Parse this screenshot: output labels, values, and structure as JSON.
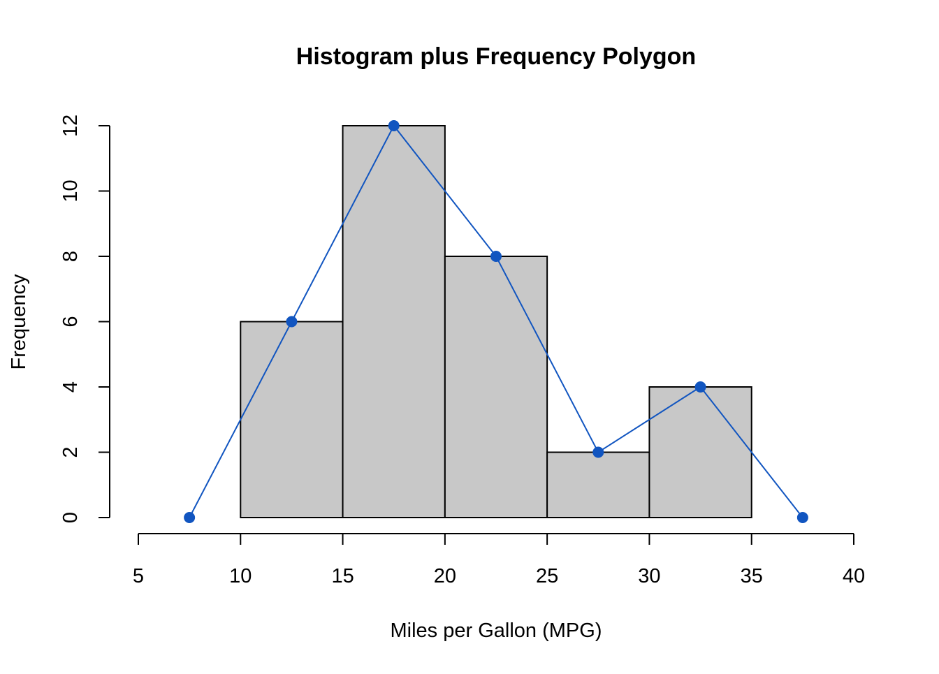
{
  "chart_data": {
    "type": "bar",
    "title": "Histogram plus Frequency Polygon",
    "xlabel": "Miles per Gallon (MPG)",
    "ylabel": "Frequency",
    "xlim": [
      5,
      40
    ],
    "ylim": [
      0,
      12
    ],
    "x_ticks": [
      "5",
      "10",
      "15",
      "20",
      "25",
      "30",
      "35",
      "40"
    ],
    "y_ticks": [
      "0",
      "2",
      "4",
      "6",
      "8",
      "10",
      "12"
    ],
    "grid": false,
    "histogram": {
      "bins": [
        [
          10,
          15
        ],
        [
          15,
          20
        ],
        [
          20,
          25
        ],
        [
          25,
          30
        ],
        [
          30,
          35
        ]
      ],
      "values": [
        6,
        12,
        8,
        2,
        4
      ],
      "fill_color": "#c8c8c8",
      "edge_color": "#000000"
    },
    "polygon": {
      "x": [
        7.5,
        12.5,
        17.5,
        22.5,
        27.5,
        32.5,
        37.5
      ],
      "y": [
        0,
        6,
        12,
        8,
        2,
        4,
        0
      ],
      "color": "#1155c0"
    }
  }
}
